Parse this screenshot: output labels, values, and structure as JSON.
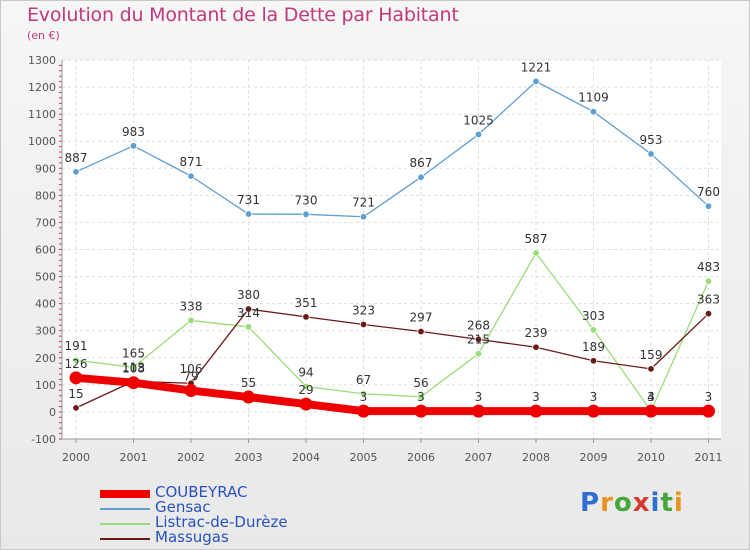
{
  "header": {
    "title": "Evolution du Montant de la Dette par Habitant",
    "subtitle": "(en €)"
  },
  "brand": {
    "text": "Proxiti",
    "letter_colors": [
      "#2f6fd0",
      "#e8931e",
      "#46a83a",
      "#d43a2f",
      "#2f6fd0",
      "#46a83a",
      "#e8931e"
    ]
  },
  "chart_data": {
    "type": "line",
    "x": [
      "2000",
      "2001",
      "2002",
      "2003",
      "2004",
      "2005",
      "2006",
      "2007",
      "2008",
      "2009",
      "2010",
      "2011"
    ],
    "ylim": [
      -100,
      1300
    ],
    "yticks": [
      -100,
      0,
      100,
      200,
      300,
      400,
      500,
      600,
      700,
      800,
      900,
      1000,
      1100,
      1200,
      1300
    ],
    "grid": true,
    "legend_position": "bottom-left",
    "series": [
      {
        "name": "COUBEYRAC",
        "color": "#ee0000",
        "width": 8,
        "values": [
          126,
          108,
          79,
          55,
          29,
          3,
          3,
          3,
          3,
          3,
          3,
          3
        ],
        "labels": [
          "126",
          "108",
          "79",
          "55",
          "29",
          "3",
          "3",
          "3",
          "3",
          "3",
          "3",
          "3"
        ]
      },
      {
        "name": "Gensac",
        "color": "#5f9ed1",
        "width": 1.3,
        "values": [
          887,
          983,
          871,
          731,
          730,
          721,
          867,
          1025,
          1221,
          1109,
          953,
          760
        ],
        "labels": [
          "887",
          "983",
          "871",
          "731",
          "730",
          "721",
          "867",
          "1025",
          "1221",
          "1109",
          "953",
          "760"
        ]
      },
      {
        "name": "Listrac-de-Durèze",
        "color": "#99dd77",
        "width": 1.3,
        "values": [
          191,
          165,
          338,
          314,
          94,
          67,
          56,
          215,
          587,
          303,
          4,
          483
        ],
        "labels": [
          "191",
          "165",
          "338",
          "314",
          "94",
          "67",
          "56",
          "215",
          "587",
          "303",
          "4",
          "483"
        ]
      },
      {
        "name": "Massugas",
        "color": "#6b1a1a",
        "width": 1.3,
        "values": [
          15,
          113,
          106,
          380,
          351,
          323,
          297,
          268,
          239,
          189,
          159,
          363
        ],
        "labels": [
          "15",
          "113",
          "106",
          "380",
          "351",
          "323",
          "297",
          "268",
          "239",
          "189",
          "159",
          "363"
        ]
      }
    ]
  }
}
